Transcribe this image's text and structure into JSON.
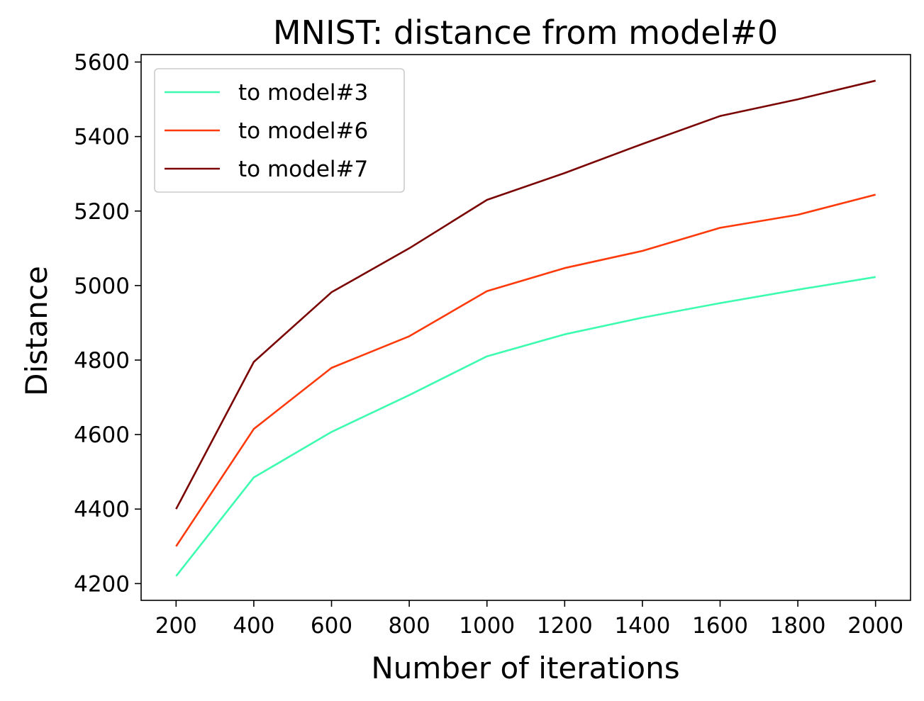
{
  "chart_data": {
    "type": "line",
    "title": "MNIST: distance from model#0",
    "xlabel": "Number of iterations",
    "ylabel": "Distance",
    "x": [
      200,
      400,
      600,
      800,
      1000,
      1200,
      1400,
      1600,
      1800,
      2000
    ],
    "xticks": [
      "200",
      "400",
      "600",
      "800",
      "1000",
      "1200",
      "1400",
      "1600",
      "1800",
      "2000"
    ],
    "yticks": [
      "4200",
      "4400",
      "4600",
      "4800",
      "5000",
      "5200",
      "5400",
      "5600"
    ],
    "xlim": [
      110,
      2090
    ],
    "ylim": [
      4155,
      5620
    ],
    "grid": false,
    "legend_position": "upper-left",
    "series": [
      {
        "name": "to model#3",
        "color": "#3dfcb0",
        "values": [
          4220,
          4485,
          4607,
          4706,
          4810,
          4869,
          4914,
          4953,
          4989,
          5023
        ]
      },
      {
        "name": "to model#6",
        "color": "#ff3a0a",
        "values": [
          4300,
          4615,
          4779,
          4864,
          4985,
          5047,
          5093,
          5155,
          5190,
          5244
        ]
      },
      {
        "name": "to model#7",
        "color": "#7a0403",
        "values": [
          4400,
          4795,
          4982,
          5100,
          5230,
          5302,
          5380,
          5455,
          5500,
          5550
        ]
      }
    ]
  }
}
